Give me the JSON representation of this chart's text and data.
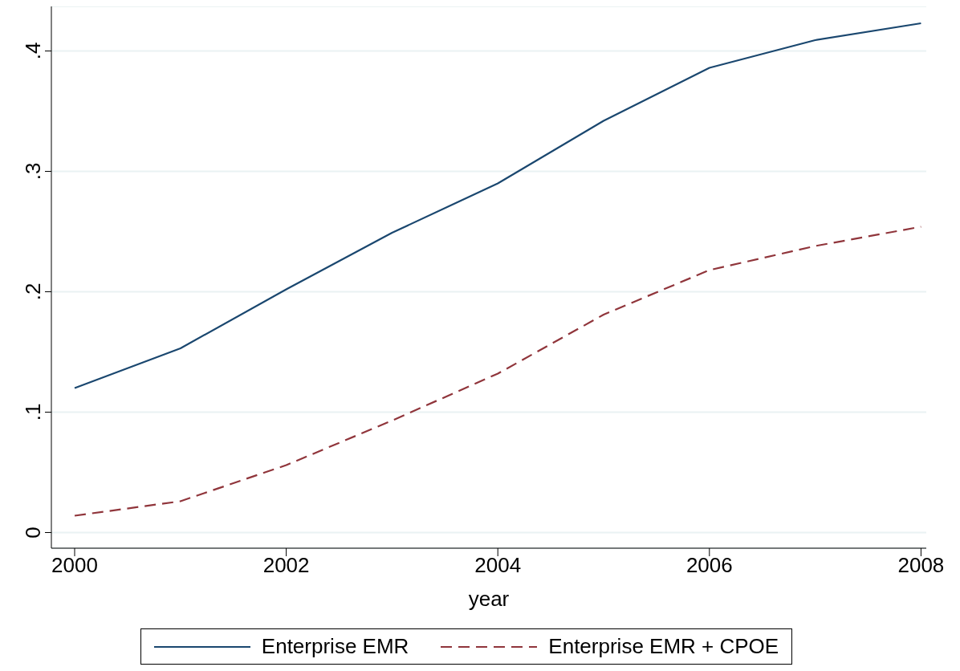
{
  "chart_data": {
    "type": "line",
    "xlabel": "year",
    "x": [
      2000,
      2001,
      2002,
      2003,
      2004,
      2005,
      2006,
      2007,
      2008
    ],
    "series": [
      {
        "name": "Enterprise EMR",
        "color": "#1a476f",
        "line_style": "solid",
        "values": [
          0.12,
          0.153,
          0.202,
          0.249,
          0.29,
          0.342,
          0.386,
          0.409,
          0.423
        ]
      },
      {
        "name": "Enterprise EMR + CPOE",
        "color": "#90353b",
        "line_style": "dashed",
        "values": [
          0.014,
          0.026,
          0.056,
          0.093,
          0.132,
          0.181,
          0.218,
          0.238,
          0.254
        ]
      }
    ],
    "xlim": [
      1999.78,
      2008.05
    ],
    "xticks": [
      2000,
      2002,
      2004,
      2006,
      2008
    ],
    "ylim": [
      -0.013,
      0.437
    ],
    "yticks": [
      0,
      {
        "value": 0.1,
        "label": ".1"
      },
      {
        "value": 0.2,
        "label": ".2"
      },
      {
        "value": 0.3,
        "label": ".3"
      },
      {
        "value": 0.4,
        "label": ".4"
      }
    ],
    "grid": "y",
    "legend": "bottom",
    "marker": "none"
  }
}
